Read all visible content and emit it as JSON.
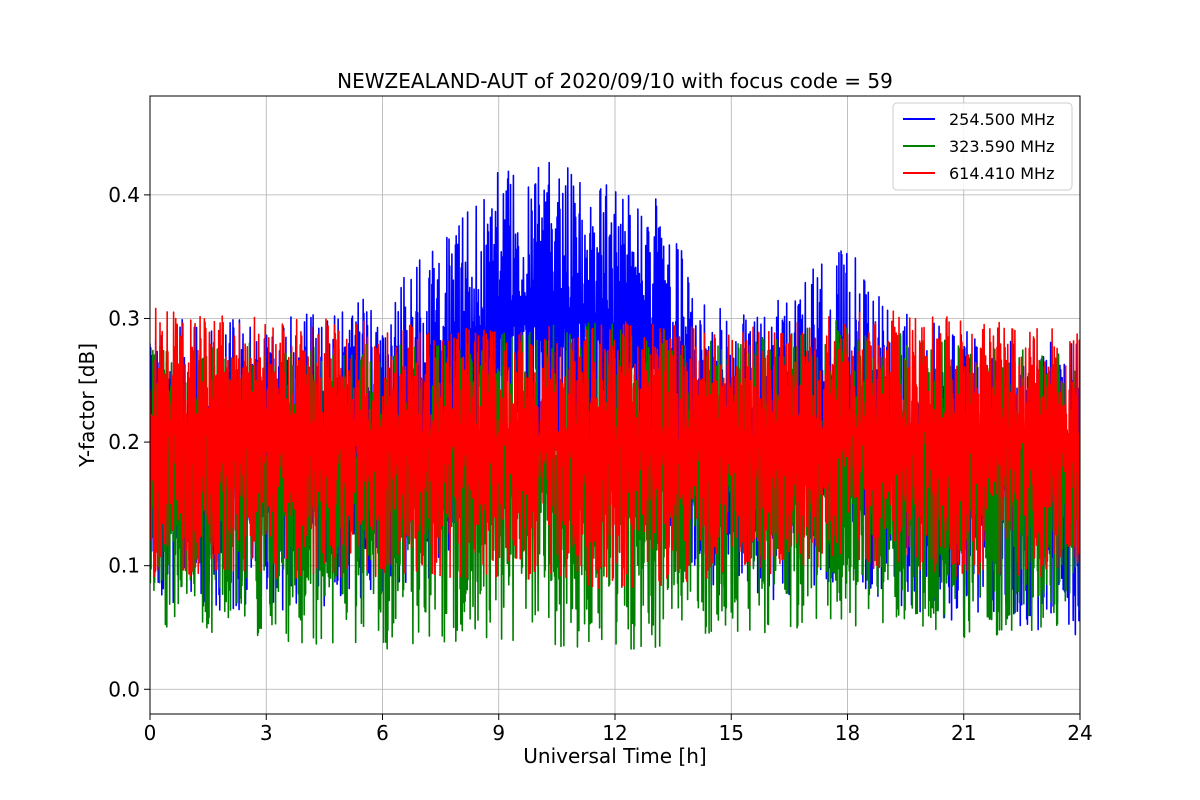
{
  "chart_data": {
    "type": "line",
    "title": "NEWZEALAND-AUT of 2020/09/10 with focus code = 59",
    "xlabel": "Universal Time [h]",
    "ylabel": "Y-factor [dB]",
    "xlim": [
      0,
      24
    ],
    "ylim": [
      -0.02,
      0.48
    ],
    "xticks": [
      0,
      3,
      6,
      9,
      12,
      15,
      18,
      21,
      24
    ],
    "xtick_labels": [
      "0",
      "3",
      "6",
      "9",
      "12",
      "15",
      "18",
      "21",
      "24"
    ],
    "yticks": [
      0.0,
      0.1,
      0.2,
      0.3,
      0.4
    ],
    "ytick_labels": [
      "0.0",
      "0.1",
      "0.2",
      "0.3",
      "0.4"
    ],
    "grid": true,
    "legend_position": "top-right",
    "series": [
      {
        "name": "254.500 MHz",
        "color": "#0000ff",
        "x": [
          0,
          3,
          6,
          7,
          8,
          9,
          10,
          11,
          12,
          13,
          14,
          15,
          16,
          17,
          18,
          19,
          21,
          24
        ],
        "upper": [
          0.3,
          0.3,
          0.32,
          0.35,
          0.38,
          0.42,
          0.43,
          0.42,
          0.41,
          0.4,
          0.34,
          0.3,
          0.31,
          0.34,
          0.36,
          0.31,
          0.29,
          0.28
        ],
        "lower": [
          0.07,
          0.06,
          0.07,
          0.08,
          0.12,
          0.16,
          0.18,
          0.17,
          0.16,
          0.12,
          0.09,
          0.07,
          0.07,
          0.08,
          0.09,
          0.07,
          0.05,
          0.04
        ],
        "center": [
          0.19,
          0.19,
          0.2,
          0.22,
          0.26,
          0.3,
          0.31,
          0.3,
          0.29,
          0.27,
          0.22,
          0.19,
          0.2,
          0.21,
          0.23,
          0.2,
          0.18,
          0.17
        ]
      },
      {
        "name": "323.590 MHz",
        "color": "#008000",
        "x": [
          0,
          3,
          6,
          9,
          12,
          15,
          18,
          21,
          24
        ],
        "upper": [
          0.28,
          0.28,
          0.28,
          0.29,
          0.3,
          0.28,
          0.3,
          0.28,
          0.27
        ],
        "lower": [
          0.05,
          0.04,
          0.03,
          0.04,
          0.03,
          0.04,
          0.05,
          0.04,
          0.05
        ],
        "center": [
          0.17,
          0.17,
          0.17,
          0.17,
          0.18,
          0.17,
          0.18,
          0.17,
          0.17
        ]
      },
      {
        "name": "614.410 MHz",
        "color": "#ff0000",
        "x": [
          0,
          3,
          6,
          9,
          12,
          15,
          18,
          21,
          24
        ],
        "upper": [
          0.31,
          0.3,
          0.3,
          0.29,
          0.3,
          0.29,
          0.31,
          0.3,
          0.29
        ],
        "lower": [
          0.09,
          0.09,
          0.09,
          0.09,
          0.08,
          0.09,
          0.1,
          0.09,
          0.09
        ],
        "center": [
          0.21,
          0.21,
          0.2,
          0.2,
          0.2,
          0.2,
          0.21,
          0.21,
          0.2
        ]
      }
    ]
  }
}
